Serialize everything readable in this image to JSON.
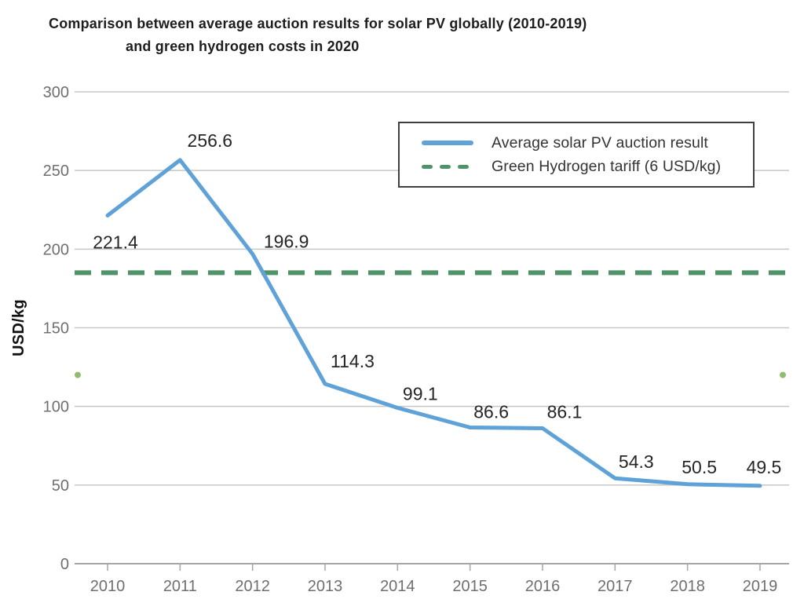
{
  "title": {
    "line1": "Comparison between average auction results for solar PV globally (2010-2019)",
    "line2": "and green hydrogen costs in 2020"
  },
  "legend": {
    "items": [
      {
        "label": "Average solar PV auction result",
        "style": "solid",
        "color": "#5fa2d8"
      },
      {
        "label": "Green Hydrogen tariff (6 USD/kg)",
        "style": "dashed",
        "color": "#4f9469"
      }
    ]
  },
  "chart_data": {
    "type": "line",
    "title": "Comparison between average auction results for solar PV globally (2010-2019) and green hydrogen costs in 2020",
    "categories": [
      "2010",
      "2011",
      "2012",
      "2013",
      "2014",
      "2015",
      "2016",
      "2017",
      "2018",
      "2019"
    ],
    "series": [
      {
        "name": "Average solar PV auction result",
        "line_style": "solid",
        "color": "#5fa2d8",
        "values": [
          221.4,
          256.6,
          196.9,
          114.3,
          99.1,
          86.6,
          86.1,
          54.3,
          50.5,
          49.5
        ],
        "data_labels": [
          "221.4",
          "256.6",
          "196.9",
          "114.3",
          "99.1",
          "86.6",
          "86.1",
          "54.3",
          "50.5",
          "49.5"
        ]
      },
      {
        "name": "Green Hydrogen tariff (6 USD/kg)",
        "line_style": "dashed",
        "color": "#4f9469",
        "constant_value": 185
      }
    ],
    "xlabel": "",
    "ylabel": "USD/kg",
    "ylim": [
      0,
      300
    ],
    "yticks": [
      0,
      50,
      100,
      150,
      200,
      250,
      300
    ],
    "grid": true,
    "legend_position": "top-right",
    "extra_marks": {
      "shape": "dot",
      "color": "#8fbc6e",
      "value": 120,
      "positions": [
        "left-plot-edge",
        "right-plot-edge"
      ]
    }
  },
  "colors": {
    "line_blue": "#5fa2d8",
    "line_green": "#4f9469",
    "dot_green": "#8fbc6e",
    "gridline": "#c7c7c7",
    "axis": "#a6a6a6",
    "tick_label": "#6f6f6f",
    "data_label": "#262626",
    "title_text": "#1d1d1d",
    "legend_border": "#3f3f3f"
  }
}
